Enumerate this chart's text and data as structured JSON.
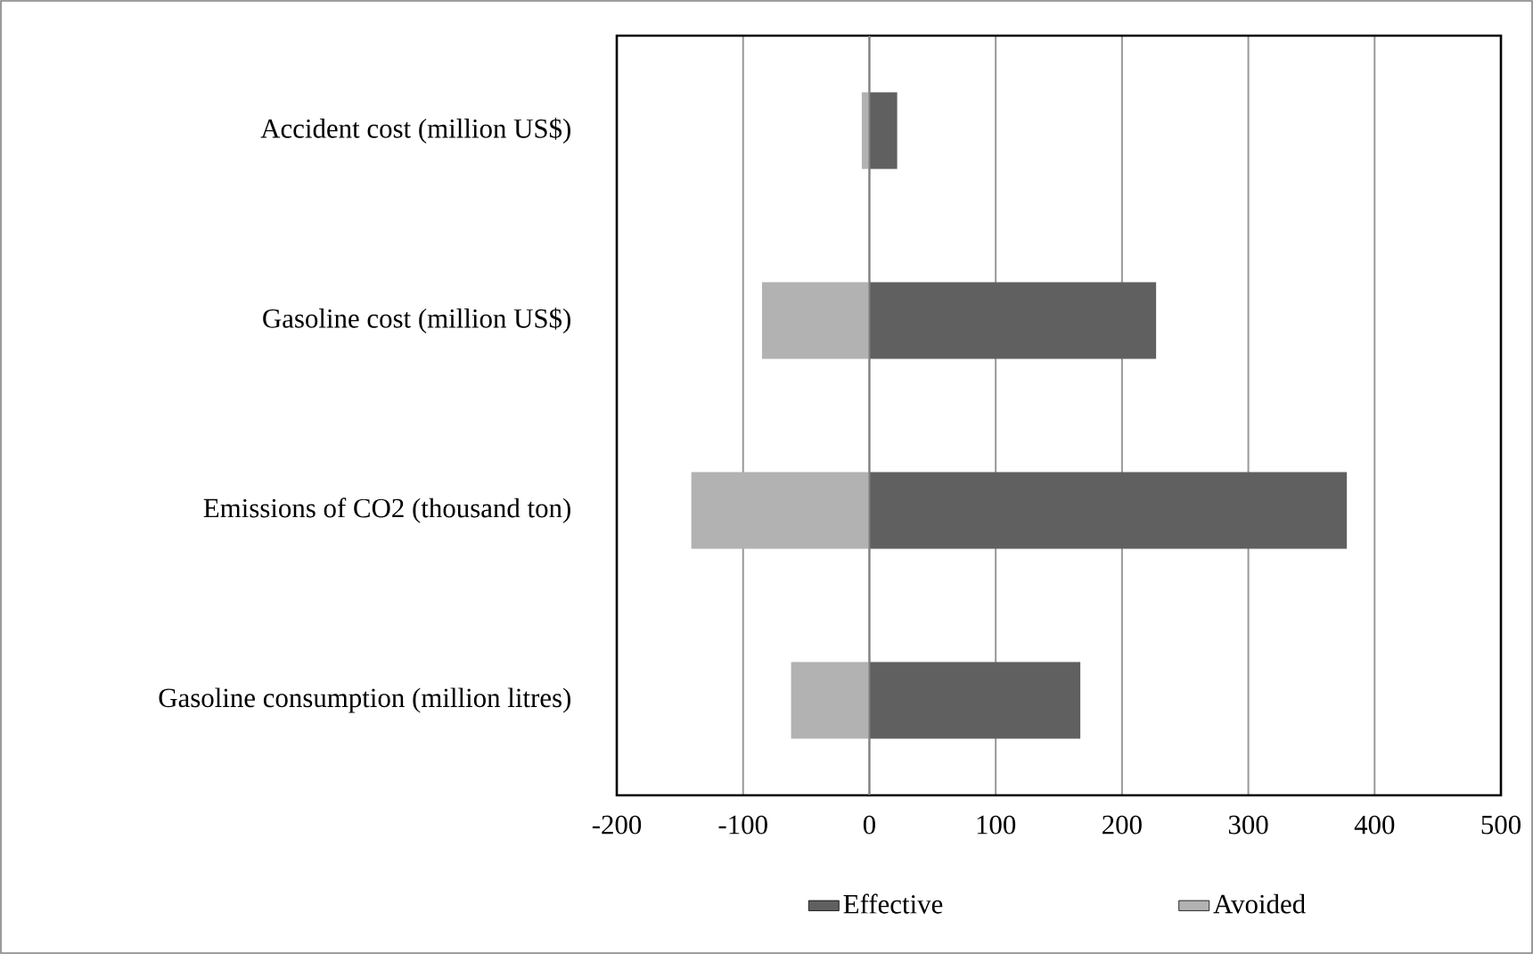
{
  "chart_data": {
    "type": "bar",
    "orientation": "horizontal",
    "stacked": true,
    "categories": [
      "Accident cost (million US$)",
      "Gasoline cost (million US$)",
      "Emissions of CO2 (thousand ton)",
      "Gasoline consumption (million litres)"
    ],
    "series": [
      {
        "name": "Effective",
        "color": "#606060",
        "values": [
          22,
          227,
          378,
          167
        ]
      },
      {
        "name": "Avoided",
        "color": "#b2b2b2",
        "values": [
          -6,
          -85,
          -141,
          -62
        ]
      }
    ],
    "xlim": [
      -200,
      500
    ],
    "xticks": [
      -200,
      -100,
      0,
      100,
      200,
      300,
      400,
      500
    ],
    "grid": "x",
    "legend": "bottom"
  }
}
